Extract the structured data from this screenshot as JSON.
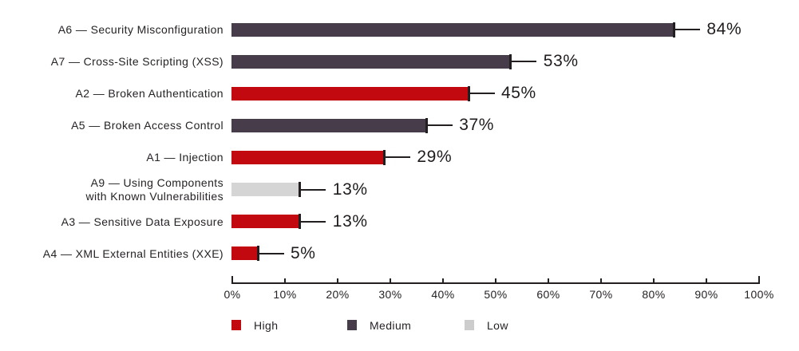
{
  "chart_data": {
    "type": "bar",
    "orientation": "horizontal",
    "title": "",
    "xlabel": "",
    "ylabel": "",
    "xlim": [
      0,
      100
    ],
    "x_ticks": [
      "0%",
      "10%",
      "20%",
      "30%",
      "40%",
      "50%",
      "60%",
      "70%",
      "80%",
      "90%",
      "100%"
    ],
    "grid": false,
    "categories": [
      "A6 — Security Misconfiguration",
      "A7 — Cross-Site Scripting (XSS)",
      "A2 — Broken Authentication",
      "A5 — Broken Access Control",
      "A1 — Injection",
      "A9 — Using Components\nwith Known Vulnerabilities",
      "A3 — Sensitive Data Exposure",
      "A4 — XML External Entities (XXE)"
    ],
    "values": [
      84,
      53,
      45,
      37,
      29,
      13,
      13,
      5
    ],
    "value_labels": [
      "84%",
      "53%",
      "45%",
      "37%",
      "29%",
      "13%",
      "13%",
      "5%"
    ],
    "severities": [
      "Medium",
      "Medium",
      "High",
      "Medium",
      "High",
      "Low",
      "High",
      "High"
    ],
    "colors": {
      "High": "#c20910",
      "Medium": "#473d4a",
      "Low": "#d5d5d5"
    },
    "legend": {
      "position": "bottom",
      "entries": [
        {
          "label": "High",
          "color": "#c20910"
        },
        {
          "label": "Medium",
          "color": "#473d4a"
        },
        {
          "label": "Low",
          "color": "#cccccc"
        }
      ]
    }
  }
}
